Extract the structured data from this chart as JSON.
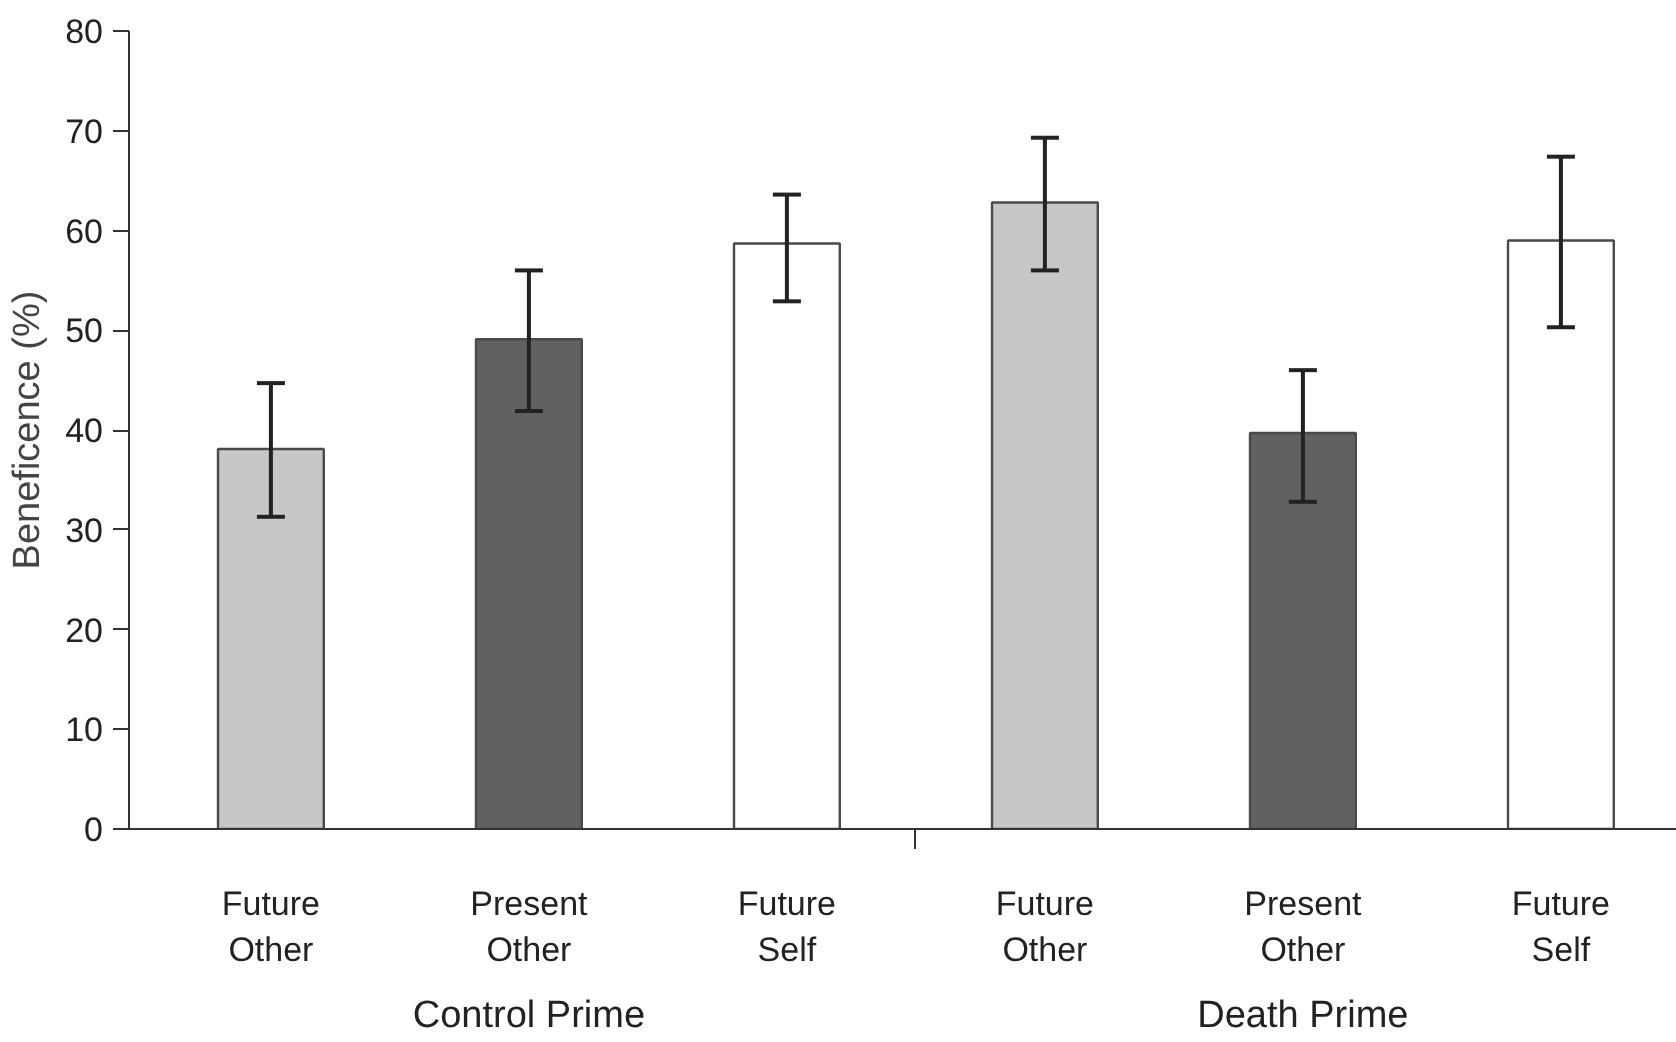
{
  "chart_data": {
    "type": "bar",
    "ylabel": "Beneficence (%)",
    "categories": [
      "Future Other",
      "Present Other",
      "Future Self",
      "Future Other",
      "Present Other",
      "Future Self"
    ],
    "values": [
      38.1,
      49.1,
      58.7,
      62.8,
      39.7,
      59.0
    ],
    "colors": [
      "#c6c7c9",
      "#616163",
      "#ffffff",
      "#c6c7c9",
      "#616163",
      "#ffffff"
    ],
    "errors": [
      [
        31.3,
        44.7
      ],
      [
        41.9,
        56.0
      ],
      [
        52.9,
        63.6
      ],
      [
        56.0,
        69.3
      ],
      [
        32.8,
        46.0
      ],
      [
        50.3,
        67.4
      ]
    ],
    "ylim": [
      0,
      80
    ],
    "yticks": [
      0,
      10,
      20,
      30,
      40,
      50,
      60,
      70,
      80
    ],
    "grid": false,
    "annotations": [
      "Control Prime",
      "Death Prime"
    ]
  }
}
